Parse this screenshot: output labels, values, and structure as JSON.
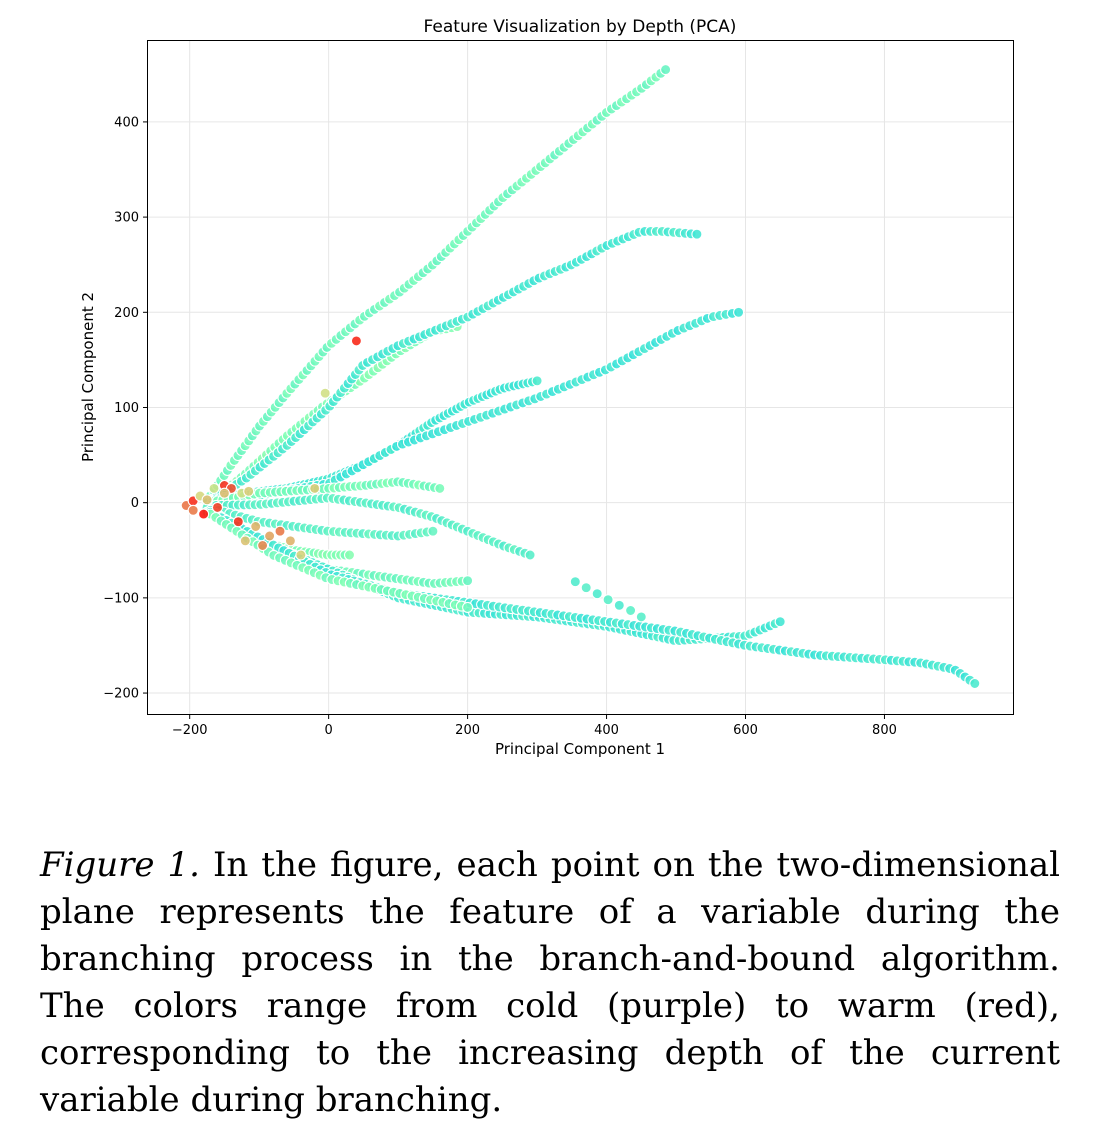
{
  "chart_data": {
    "type": "scatter",
    "title": "Feature Visualization by Depth (PCA)",
    "xlabel": "Principal Component 1",
    "ylabel": "Principal Component 2",
    "xlim": [
      -260,
      985
    ],
    "ylim": [
      -222,
      485
    ],
    "xticks": [
      -200,
      0,
      200,
      400,
      600,
      800
    ],
    "yticks": [
      -200,
      -100,
      0,
      100,
      200,
      300,
      400
    ],
    "xtick_labels": [
      "−200",
      "0",
      "200",
      "400",
      "600",
      "800"
    ],
    "ytick_labels": [
      "−200",
      "−100",
      "0",
      "100",
      "200",
      "300",
      "400"
    ],
    "grid": true,
    "color_scale": "rainbow: cold (purple) to warm (red) = increasing depth",
    "color_stops": [
      "#7f00ff",
      "#2adddd",
      "#80ffb4",
      "#d4dd80",
      "#ff0000"
    ],
    "depth_range": [
      0,
      1
    ],
    "series": [
      {
        "points": [
          [
            -175,
            2
          ],
          [
            -140,
            40
          ],
          [
            -100,
            80
          ],
          [
            -60,
            115
          ],
          [
            0,
            165
          ],
          [
            50,
            195
          ],
          [
            100,
            220
          ],
          [
            150,
            250
          ],
          [
            200,
            285
          ],
          [
            250,
            320
          ],
          [
            300,
            350
          ],
          [
            350,
            380
          ],
          [
            400,
            410
          ],
          [
            450,
            435
          ],
          [
            485,
            455
          ]
        ],
        "depth": 0.45,
        "n": 105
      },
      {
        "points": [
          [
            -170,
            0
          ],
          [
            -120,
            30
          ],
          [
            -60,
            70
          ],
          [
            -10,
            100
          ],
          [
            50,
            130
          ],
          [
            100,
            158
          ],
          [
            150,
            180
          ],
          [
            185,
            185
          ]
        ],
        "depth": 0.5,
        "n": 55
      },
      {
        "points": [
          [
            -175,
            0
          ],
          [
            -120,
            25
          ],
          [
            -60,
            60
          ],
          [
            0,
            100
          ],
          [
            50,
            145
          ],
          [
            100,
            165
          ],
          [
            200,
            195
          ],
          [
            300,
            235
          ],
          [
            350,
            250
          ],
          [
            400,
            270
          ],
          [
            450,
            285
          ],
          [
            480,
            285
          ],
          [
            530,
            282
          ]
        ],
        "depth": 0.33,
        "n": 100
      },
      {
        "points": [
          [
            -170,
            2
          ],
          [
            -120,
            10
          ],
          [
            -60,
            15
          ],
          [
            0,
            25
          ],
          [
            50,
            40
          ],
          [
            100,
            60
          ],
          [
            150,
            85
          ],
          [
            200,
            105
          ],
          [
            250,
            120
          ],
          [
            300,
            128
          ]
        ],
        "depth": 0.32,
        "n": 75
      },
      {
        "points": [
          [
            -170,
            0
          ],
          [
            -100,
            8
          ],
          [
            0,
            20
          ],
          [
            100,
            60
          ],
          [
            200,
            85
          ],
          [
            300,
            110
          ],
          [
            400,
            140
          ],
          [
            500,
            180
          ],
          [
            550,
            195
          ],
          [
            590,
            200
          ]
        ],
        "depth": 0.31,
        "n": 90
      },
      {
        "points": [
          [
            -175,
            0
          ],
          [
            -100,
            10
          ],
          [
            0,
            15
          ],
          [
            50,
            18
          ],
          [
            100,
            22
          ],
          [
            160,
            15
          ]
        ],
        "depth": 0.47,
        "n": 45
      },
      {
        "points": [
          [
            -170,
            -3
          ],
          [
            -100,
            -2
          ],
          [
            0,
            5
          ],
          [
            100,
            -5
          ],
          [
            150,
            -15
          ],
          [
            200,
            -30
          ],
          [
            250,
            -45
          ],
          [
            290,
            -55
          ]
        ],
        "depth": 0.38,
        "n": 60
      },
      {
        "points": [
          [
            -175,
            -5
          ],
          [
            -100,
            -20
          ],
          [
            0,
            -30
          ],
          [
            100,
            -35
          ],
          [
            150,
            -30
          ]
        ],
        "depth": 0.4,
        "n": 40
      },
      {
        "points": [
          [
            -175,
            -10
          ],
          [
            -100,
            -40
          ],
          [
            -50,
            -50
          ],
          [
            0,
            -55
          ],
          [
            30,
            -55
          ]
        ],
        "depth": 0.5,
        "n": 35
      },
      {
        "points": [
          [
            -170,
            -10
          ],
          [
            -100,
            -40
          ],
          [
            0,
            -70
          ],
          [
            100,
            -80
          ],
          [
            150,
            -85
          ],
          [
            200,
            -82
          ]
        ],
        "depth": 0.45,
        "n": 50
      },
      {
        "points": [
          [
            -170,
            -8
          ],
          [
            -100,
            -40
          ],
          [
            0,
            -70
          ],
          [
            100,
            -100
          ],
          [
            200,
            -115
          ],
          [
            300,
            -120
          ],
          [
            400,
            -130
          ],
          [
            500,
            -145
          ],
          [
            600,
            -140
          ],
          [
            650,
            -125
          ]
        ],
        "depth": 0.33,
        "n": 110
      },
      {
        "points": [
          [
            -170,
            -10
          ],
          [
            0,
            -75
          ],
          [
            100,
            -95
          ],
          [
            200,
            -105
          ],
          [
            300,
            -115
          ],
          [
            400,
            -125
          ],
          [
            500,
            -135
          ],
          [
            600,
            -150
          ],
          [
            700,
            -160
          ],
          [
            800,
            -165
          ],
          [
            850,
            -168
          ],
          [
            900,
            -175
          ],
          [
            930,
            -190
          ]
        ],
        "depth": 0.32,
        "n": 135
      },
      {
        "points": [
          [
            -170,
            -12
          ],
          [
            -80,
            -55
          ],
          [
            0,
            -80
          ],
          [
            100,
            -95
          ],
          [
            200,
            -110
          ]
        ],
        "depth": 0.47,
        "n": 45
      },
      {
        "points": [
          [
            355,
            -83
          ],
          [
            385,
            -95
          ],
          [
            410,
            -105
          ],
          [
            440,
            -115
          ],
          [
            450,
            -120
          ]
        ],
        "depth": 0.36,
        "n": 7
      },
      {
        "points": [
          [
            -205,
            -3
          ],
          [
            -195,
            2
          ],
          [
            -185,
            7
          ],
          [
            -175,
            3
          ],
          [
            -165,
            15
          ],
          [
            -150,
            18
          ],
          [
            -140,
            15
          ],
          [
            -125,
            10
          ],
          [
            -115,
            12
          ],
          [
            -105,
            -25
          ],
          [
            -85,
            -35
          ],
          [
            -70,
            -30
          ],
          [
            -55,
            -40
          ],
          [
            -40,
            -55
          ],
          [
            -20,
            15
          ],
          [
            -5,
            115
          ],
          [
            40,
            170
          ],
          [
            -195,
            -8
          ],
          [
            -180,
            -12
          ],
          [
            -160,
            -5
          ],
          [
            -130,
            -20
          ],
          [
            -150,
            10
          ],
          [
            -120,
            -40
          ],
          [
            -95,
            -45
          ]
        ],
        "depth": 0.85,
        "n": 24
      }
    ]
  },
  "caption": {
    "label": "Figure 1.",
    "text": " In the figure, each point on the two-dimensional plane represents the feature of a variable during the branching process in the branch-and-bound algorithm. The colors range from cold (purple) to warm (red), corresponding to the increasing depth of the current variable during branching."
  }
}
